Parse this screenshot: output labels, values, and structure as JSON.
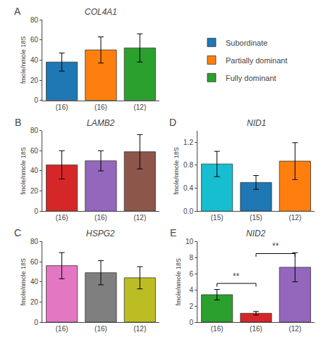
{
  "chart_data": [
    {
      "type": "bar",
      "title": "COL4A1",
      "ylabel": "fmole/nmole 18S",
      "categories": [
        "(16)",
        "(16)",
        "(12)"
      ],
      "series": [
        {
          "name": "Subordinate",
          "values": [
            38,
            null,
            null
          ],
          "errors": [
            9,
            null,
            null
          ]
        },
        {
          "name": "Partially dominant",
          "values": [
            null,
            50,
            null
          ],
          "errors": [
            null,
            13,
            null
          ]
        },
        {
          "name": "Fully dominant",
          "values": [
            null,
            null,
            52
          ],
          "errors": [
            null,
            null,
            14
          ]
        }
      ],
      "ylim": [
        0,
        80
      ],
      "yticks": [
        0,
        20,
        40,
        60,
        80
      ],
      "grid": false,
      "legend": "upper right",
      "annotations": [
        {
          "text": "A"
        }
      ]
    },
    {
      "type": "bar",
      "title": "LAMB2",
      "ylabel": "fmole/nmole 18S",
      "categories": [
        "(16)",
        "(16)",
        "(12)"
      ],
      "series": [
        {
          "name": "Subordinate",
          "values": [
            46,
            null,
            null
          ],
          "errors": [
            14,
            null,
            null
          ]
        },
        {
          "name": "Partially dominant",
          "values": [
            null,
            50,
            null
          ],
          "errors": [
            null,
            10,
            null
          ]
        },
        {
          "name": "Fully dominant",
          "values": [
            null,
            null,
            59
          ],
          "errors": [
            null,
            null,
            17
          ]
        }
      ],
      "ylim": [
        0,
        80
      ],
      "yticks": [
        0,
        20,
        40,
        60,
        80
      ],
      "grid": false,
      "annotations": [
        {
          "text": "B"
        }
      ]
    },
    {
      "type": "bar",
      "title": "HSPG2",
      "ylabel": "fmole/nmole 18S",
      "categories": [
        "(16)",
        "(16)",
        "(12)"
      ],
      "series": [
        {
          "name": "Subordinate",
          "values": [
            56,
            null,
            null
          ],
          "errors": [
            13,
            null,
            null
          ]
        },
        {
          "name": "Partially dominant",
          "values": [
            null,
            49,
            null
          ],
          "errors": [
            null,
            12,
            null
          ]
        },
        {
          "name": "Fully dominant",
          "values": [
            null,
            null,
            44
          ],
          "errors": [
            null,
            null,
            11
          ]
        }
      ],
      "ylim": [
        0,
        80
      ],
      "yticks": [
        0,
        20,
        40,
        60,
        80
      ],
      "grid": false,
      "annotations": [
        {
          "text": "C"
        }
      ]
    },
    {
      "type": "bar",
      "title": "NID1",
      "ylabel": "fmole/nmole 18S",
      "categories": [
        "(15)",
        "(15)",
        "(12)"
      ],
      "series": [
        {
          "name": "Subordinate",
          "values": [
            0.82,
            null,
            null
          ],
          "errors": [
            0.22,
            null,
            null
          ]
        },
        {
          "name": "Partially dominant",
          "values": [
            null,
            0.5,
            null
          ],
          "errors": [
            null,
            0.12,
            null
          ]
        },
        {
          "name": "Fully dominant",
          "values": [
            null,
            null,
            0.87
          ],
          "errors": [
            null,
            null,
            0.32
          ]
        }
      ],
      "ylim": [
        0,
        1.4
      ],
      "yticks": [
        {
          "value": 0,
          "label": "0.0"
        },
        0.4,
        0.8,
        1.2
      ],
      "grid": false,
      "annotations": [
        {
          "text": "D"
        }
      ]
    },
    {
      "type": "bar",
      "title": "NID2",
      "ylabel": "fmole/nmole 18S",
      "categories": [
        "(16)",
        "(16)",
        "(12)"
      ],
      "series": [
        {
          "name": "Subordinate",
          "values": [
            3.4,
            null,
            null
          ],
          "errors": [
            0.65,
            null,
            null
          ]
        },
        {
          "name": "Partially dominant",
          "values": [
            null,
            1.1,
            null
          ],
          "errors": [
            null,
            0.22,
            null
          ]
        },
        {
          "name": "Fully dominant",
          "values": [
            null,
            null,
            6.8
          ],
          "errors": [
            null,
            null,
            1.8
          ]
        }
      ],
      "ylim": [
        0,
        10
      ],
      "yticks": [
        0,
        2,
        4,
        6,
        8,
        10
      ],
      "grid": false,
      "annotations": [
        {
          "text": "E"
        },
        {
          "text": "**",
          "x": [
            0,
            1
          ],
          "y": 4.9,
          "line_y": 4.8
        },
        {
          "text": "**",
          "x": [
            1,
            2
          ],
          "y": 8.6,
          "line_y": 8.5
        }
      ]
    }
  ]
}
